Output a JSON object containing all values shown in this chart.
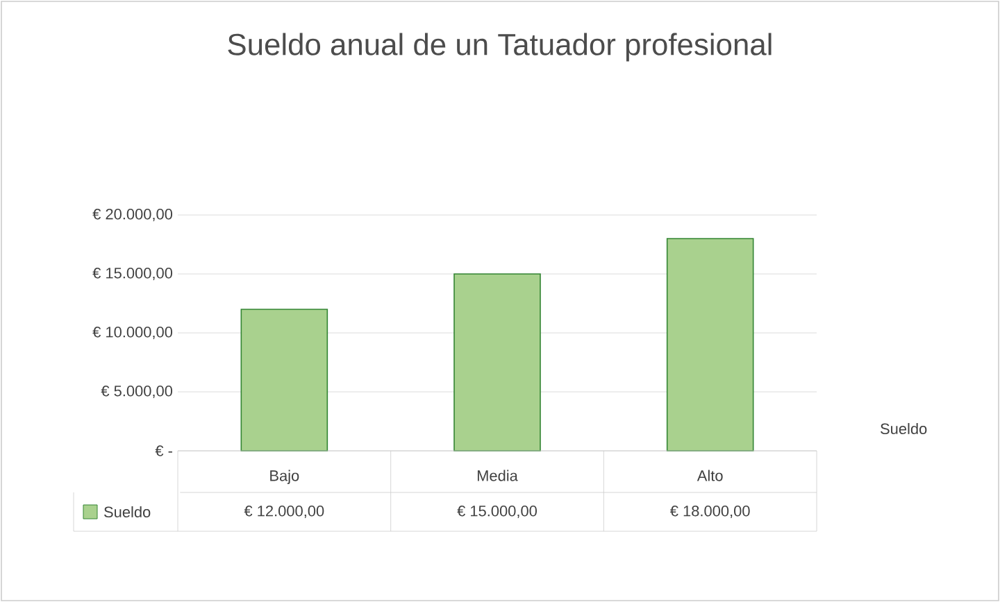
{
  "chart_data": {
    "type": "bar",
    "title": "Sueldo anual de un Tatuador profesional",
    "categories": [
      "Bajo",
      "Media",
      "Alto"
    ],
    "series": [
      {
        "name": "Sueldo",
        "color": "#a9d18e",
        "values": [
          12000,
          15000,
          18000
        ],
        "value_labels": [
          "€ 12.000,00",
          "€ 15.000,00",
          "€ 18.000,00"
        ]
      }
    ],
    "ylim": [
      0,
      20000
    ],
    "yticks": [
      {
        "value": 0,
        "label": "€ -"
      },
      {
        "value": 5000,
        "label": "€ 5.000,00"
      },
      {
        "value": 10000,
        "label": "€ 10.000,00"
      },
      {
        "value": 15000,
        "label": "€ 15.000,00"
      },
      {
        "value": 20000,
        "label": "€ 20.000,00"
      }
    ],
    "grid": "y",
    "legend": "bottom"
  }
}
